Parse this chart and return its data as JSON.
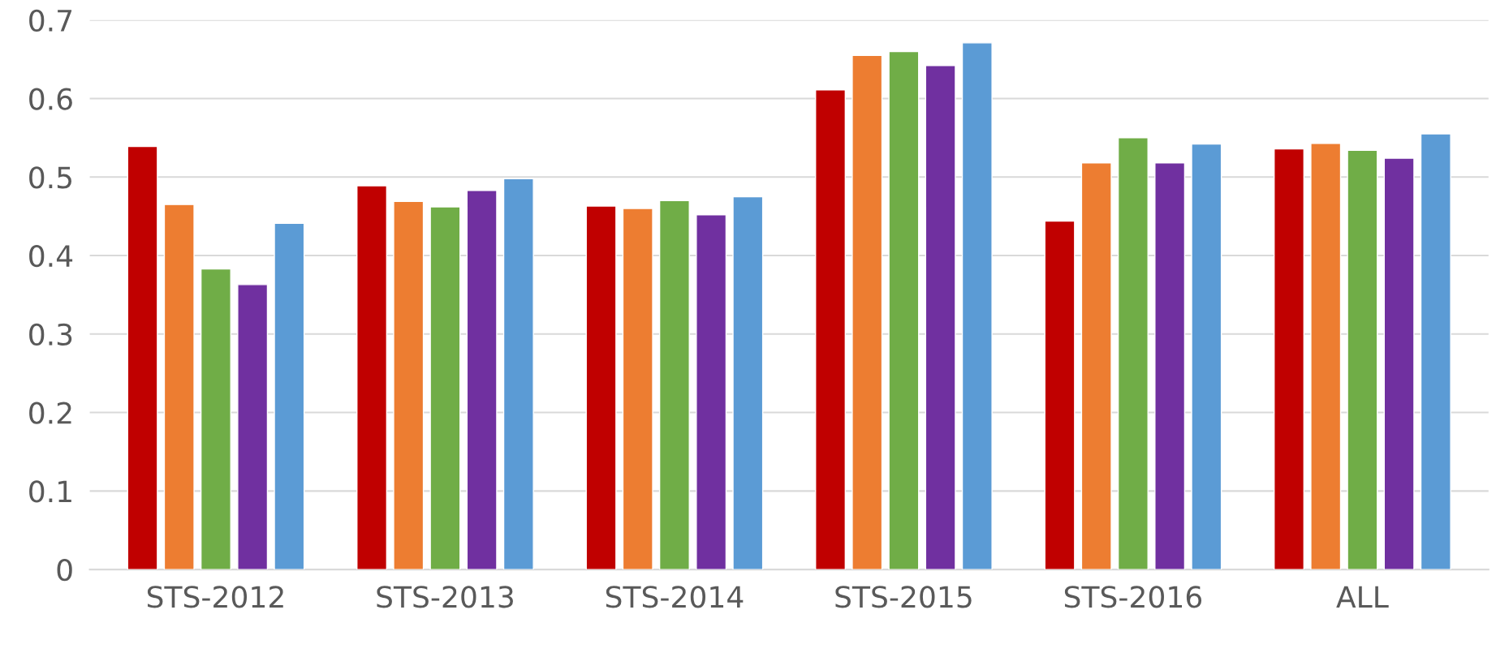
{
  "chart_data": {
    "type": "bar",
    "categories": [
      "STS-2012",
      "STS-2013",
      "STS-2014",
      "STS-2015",
      "STS-2016",
      "ALL"
    ],
    "series": [
      {
        "color": "#c00000",
        "values": [
          0.539,
          0.489,
          0.463,
          0.611,
          0.444,
          0.536
        ]
      },
      {
        "color": "#ed7d31",
        "values": [
          0.465,
          0.469,
          0.46,
          0.655,
          0.518,
          0.543
        ]
      },
      {
        "color": "#70ad47",
        "values": [
          0.383,
          0.462,
          0.47,
          0.66,
          0.55,
          0.534
        ]
      },
      {
        "color": "#7030a0",
        "values": [
          0.363,
          0.483,
          0.452,
          0.642,
          0.518,
          0.524
        ]
      },
      {
        "color": "#5b9bd5",
        "values": [
          0.441,
          0.498,
          0.475,
          0.671,
          0.542,
          0.555
        ]
      }
    ],
    "ylim": [
      0,
      0.7
    ],
    "yticks": [
      0,
      0.1,
      0.2,
      0.3,
      0.4,
      0.5,
      0.6,
      0.7
    ],
    "grid": "y",
    "legend": false
  }
}
